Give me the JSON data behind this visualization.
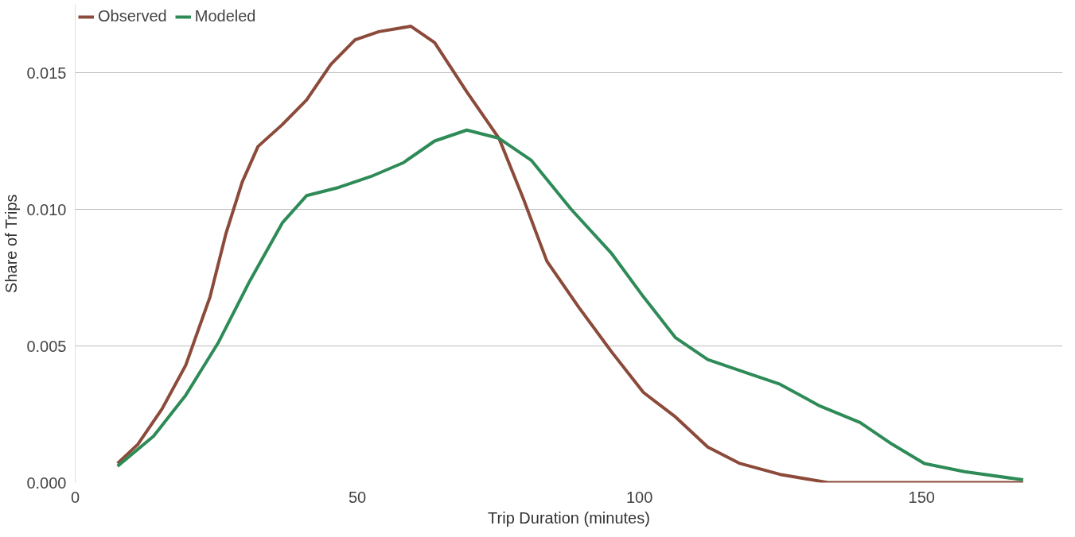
{
  "chart_data": {
    "type": "line",
    "xlabel": "Trip Duration (minutes)",
    "ylabel": "Share of Trips",
    "xlim": [
      0,
      175
    ],
    "ylim": [
      0,
      0.0175
    ],
    "xticks": [
      0,
      50,
      100,
      150
    ],
    "yticks": [
      {
        "value": 0,
        "label": "0.000"
      },
      {
        "value": 0.005,
        "label": "0.005"
      },
      {
        "value": 0.01,
        "label": "0.010"
      },
      {
        "value": 0.015,
        "label": "0.015"
      }
    ],
    "grid": "y",
    "legend": "top left",
    "marker": "none",
    "line_style": "solid",
    "series": [
      {
        "name": "Observed",
        "color": "#8b4a3a",
        "x": [
          7.5,
          11.1,
          15.4,
          19.6,
          23.9,
          26.7,
          29.6,
          32.4,
          36.7,
          41,
          45.3,
          49.6,
          53.8,
          59.5,
          63.7,
          69.4,
          75.1,
          79.4,
          83.6,
          89.3,
          95,
          100.7,
          106.4,
          112.1,
          117.8,
          124.9,
          133.4,
          146.2,
          168
        ],
        "values": [
          0.0007,
          0.0014,
          0.0027,
          0.0043,
          0.0068,
          0.0091,
          0.011,
          0.0123,
          0.0131,
          0.014,
          0.0153,
          0.0162,
          0.0165,
          0.0167,
          0.0161,
          0.0143,
          0.0126,
          0.0104,
          0.0081,
          0.0064,
          0.0048,
          0.0033,
          0.0024,
          0.0013,
          0.0007,
          0.0003,
          0,
          0,
          0
        ]
      },
      {
        "name": "Modeled",
        "color": "#2e8b57",
        "x": [
          7.5,
          13.9,
          19.6,
          25.3,
          31,
          36.7,
          41,
          46.7,
          52.4,
          58.1,
          63.7,
          69.4,
          75.1,
          80.8,
          87.9,
          95,
          100.7,
          106.4,
          112.1,
          119.2,
          124.9,
          132,
          139.1,
          144.8,
          150.5,
          157.6,
          168
        ],
        "values": [
          0.0006,
          0.0017,
          0.0032,
          0.0051,
          0.0074,
          0.0095,
          0.0105,
          0.0108,
          0.0112,
          0.0117,
          0.0125,
          0.0129,
          0.0126,
          0.0118,
          0.01,
          0.0084,
          0.0068,
          0.0053,
          0.0045,
          0.004,
          0.0036,
          0.0028,
          0.0022,
          0.0014,
          0.0007,
          0.0004,
          0.0001
        ]
      }
    ]
  }
}
